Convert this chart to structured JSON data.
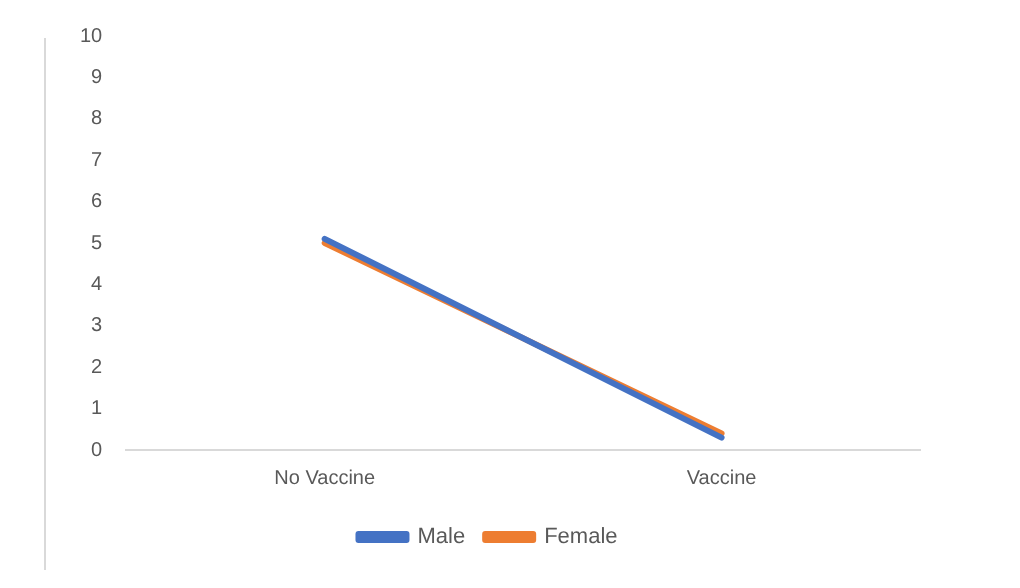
{
  "chart_data": {
    "type": "line",
    "categories": [
      "No Vaccine",
      "Vaccine"
    ],
    "series": [
      {
        "name": "Male",
        "color": "#4472c4",
        "values": [
          5.1,
          0.3
        ]
      },
      {
        "name": "Female",
        "color": "#ed7d31",
        "values": [
          5.0,
          0.4
        ]
      }
    ],
    "ylim": [
      0,
      10
    ],
    "yticks": [
      0,
      1,
      2,
      3,
      4,
      5,
      6,
      7,
      8,
      9,
      10
    ],
    "grid": false,
    "legend": "bottom",
    "marker": "none",
    "line_style": "solid"
  }
}
